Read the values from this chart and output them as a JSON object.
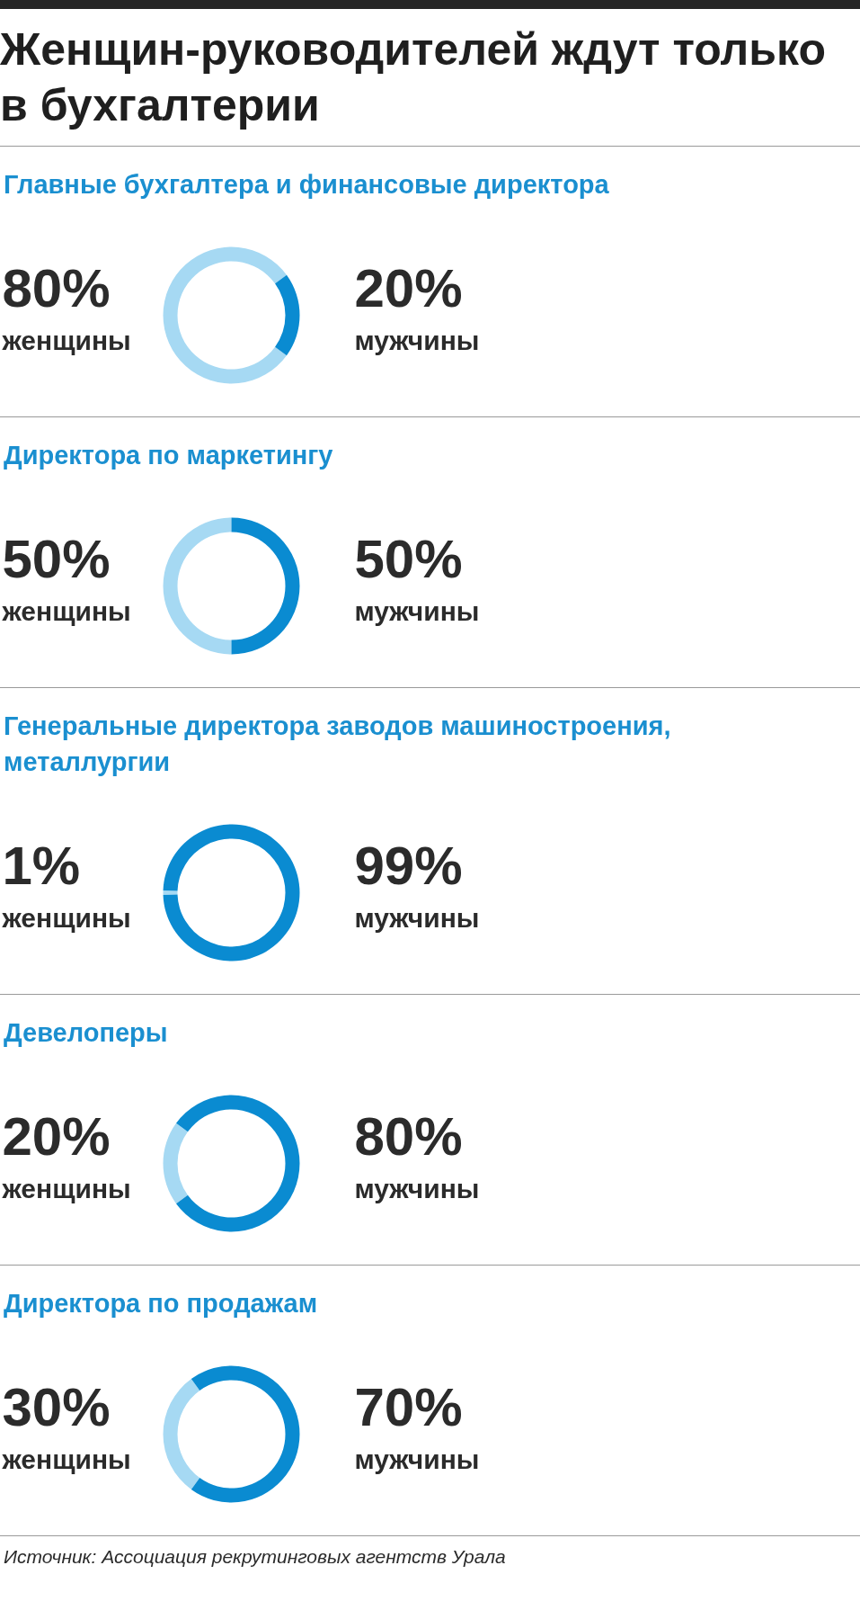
{
  "chart_data": [
    {
      "type": "donut",
      "title": "Женщин-руководителей ждут только в бухгалтерии",
      "subtitle": "Главные бухгалтера и финансовые директора",
      "categories": [
        "женщины",
        "мужчины"
      ],
      "values": [
        80,
        20
      ],
      "value_labels": [
        "80%",
        "20%"
      ],
      "colors": [
        "#a6d9f3",
        "#0a8bd1"
      ]
    },
    {
      "type": "donut",
      "subtitle": "Директора по маркетингу",
      "categories": [
        "женщины",
        "мужчины"
      ],
      "values": [
        50,
        50
      ],
      "value_labels": [
        "50%",
        "50%"
      ],
      "colors": [
        "#a6d9f3",
        "#0a8bd1"
      ]
    },
    {
      "type": "donut",
      "subtitle": "Генеральные директора заводов машиностроения, металлургии",
      "categories": [
        "женщины",
        "мужчины"
      ],
      "values": [
        1,
        99
      ],
      "value_labels": [
        "1%",
        "99%"
      ],
      "colors": [
        "#a6d9f3",
        "#0a8bd1"
      ]
    },
    {
      "type": "donut",
      "subtitle": "Девелоперы",
      "categories": [
        "женщины",
        "мужчины"
      ],
      "values": [
        20,
        80
      ],
      "value_labels": [
        "20%",
        "80%"
      ],
      "colors": [
        "#a6d9f3",
        "#0a8bd1"
      ]
    },
    {
      "type": "donut",
      "subtitle": "Директора по продажам",
      "categories": [
        "женщины",
        "мужчины"
      ],
      "values": [
        30,
        70
      ],
      "value_labels": [
        "30%",
        "70%"
      ],
      "colors": [
        "#a6d9f3",
        "#0a8bd1"
      ],
      "annotations": [
        "Источник: Ассоциация рекрутинговых агентств Урала"
      ]
    }
  ]
}
